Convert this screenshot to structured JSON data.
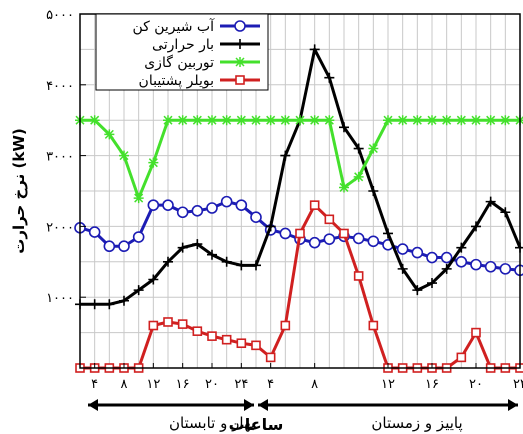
{
  "chart_data": {
    "type": "line",
    "title": "",
    "ylabel": "نرخ حرارت (kW)",
    "xlabel": "ساعات",
    "ylim": [
      0,
      5000
    ],
    "yticks": [
      {
        "v": 1000,
        "label": "۱۰۰۰"
      },
      {
        "v": 2000,
        "label": "۲۰۰۰"
      },
      {
        "v": 3000,
        "label": "۳۰۰۰"
      },
      {
        "v": 4000,
        "label": "۴۰۰۰"
      },
      {
        "v": 5000,
        "label": "۵۰۰۰"
      }
    ],
    "x": [
      0,
      1,
      2,
      3,
      4,
      5,
      6,
      7,
      8,
      9,
      10,
      11,
      12,
      13,
      14,
      15,
      16,
      17,
      18,
      19,
      20,
      21,
      22,
      23,
      24,
      25,
      26,
      27,
      28,
      29,
      30
    ],
    "xticks": [
      {
        "x": 1,
        "label": "۴"
      },
      {
        "x": 3,
        "label": "۸"
      },
      {
        "x": 5,
        "label": "۱۲"
      },
      {
        "x": 7,
        "label": "۱۶"
      },
      {
        "x": 9,
        "label": "۲۰"
      },
      {
        "x": 11,
        "label": "۲۴"
      },
      {
        "x": 13,
        "label": "۴"
      },
      {
        "x": 16,
        "label": "۸"
      },
      {
        "x": 21,
        "label": "۱۲"
      },
      {
        "x": 24,
        "label": "۱۶"
      },
      {
        "x": 27,
        "label": "۲۰"
      },
      {
        "x": 30,
        "label": "۲۴"
      }
    ],
    "grid": true,
    "legend_position": "top-left",
    "series": [
      {
        "name": "آب شیرین کن",
        "color": "#1c1cb4",
        "marker": "circle",
        "values": [
          1980,
          1920,
          1720,
          1720,
          1850,
          2300,
          2300,
          2200,
          2220,
          2260,
          2350,
          2300,
          2130,
          1950,
          1900,
          1820,
          1770,
          1820,
          1860,
          1830,
          1790,
          1740,
          1680,
          1630,
          1560,
          1560,
          1500,
          1460,
          1430,
          1400,
          1380
        ]
      },
      {
        "name": "بار حرارتی",
        "color": "#000000",
        "marker": "plus",
        "values": [
          900,
          900,
          900,
          950,
          1100,
          1250,
          1500,
          1700,
          1750,
          1600,
          1500,
          1450,
          1450,
          2000,
          3000,
          3500,
          4500,
          4100,
          3400,
          3100,
          2500,
          1900,
          1400,
          1100,
          1200,
          1400,
          1700,
          2000,
          2350,
          2200,
          1700
        ]
      },
      {
        "name": "توربین گازی",
        "color": "#44e02c",
        "marker": "star",
        "values": [
          3500,
          3500,
          3300,
          3000,
          2400,
          2900,
          3500,
          3500,
          3500,
          3500,
          3500,
          3500,
          3500,
          3500,
          3500,
          3500,
          3500,
          3500,
          2550,
          2700,
          3100,
          3500,
          3500,
          3500,
          3500,
          3500,
          3500,
          3500,
          3500,
          3500,
          3500
        ]
      },
      {
        "name": "بویلر پشتیبان",
        "color": "#d02020",
        "marker": "square",
        "values": [
          0,
          0,
          0,
          0,
          0,
          600,
          650,
          620,
          520,
          450,
          400,
          350,
          320,
          150,
          600,
          1900,
          2300,
          2100,
          1900,
          1300,
          600,
          0,
          0,
          0,
          0,
          0,
          150,
          500,
          0,
          0,
          0
        ]
      }
    ],
    "seasons": [
      {
        "label": "بهار و تابستان"
      },
      {
        "label": "پاییز و زمستان"
      }
    ]
  }
}
